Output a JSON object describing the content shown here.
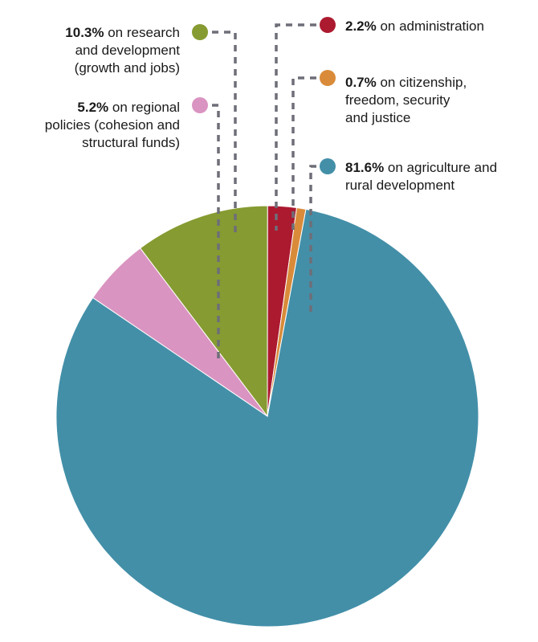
{
  "chart_data": {
    "type": "pie",
    "unit": "%",
    "slices": [
      {
        "value": 81.6,
        "pct_label": "81.6%",
        "lines": [
          "on agriculture and",
          "rural development"
        ],
        "color": "#438fa8"
      },
      {
        "value": 10.3,
        "pct_label": "10.3%",
        "lines": [
          "on research",
          "and development",
          "(growth and jobs)"
        ],
        "color": "#869b31"
      },
      {
        "value": 5.2,
        "pct_label": "5.2%",
        "lines": [
          "on regional",
          "policies (cohesion and",
          "structural funds)"
        ],
        "color": "#da94c1"
      },
      {
        "value": 2.2,
        "pct_label": "2.2%",
        "lines": [
          "on administration"
        ],
        "color": "#ac1a30"
      },
      {
        "value": 0.7,
        "pct_label": "0.7%",
        "lines": [
          "on citizenship,",
          "freedom, security",
          "and justice"
        ],
        "color": "#d98b3a"
      }
    ]
  }
}
